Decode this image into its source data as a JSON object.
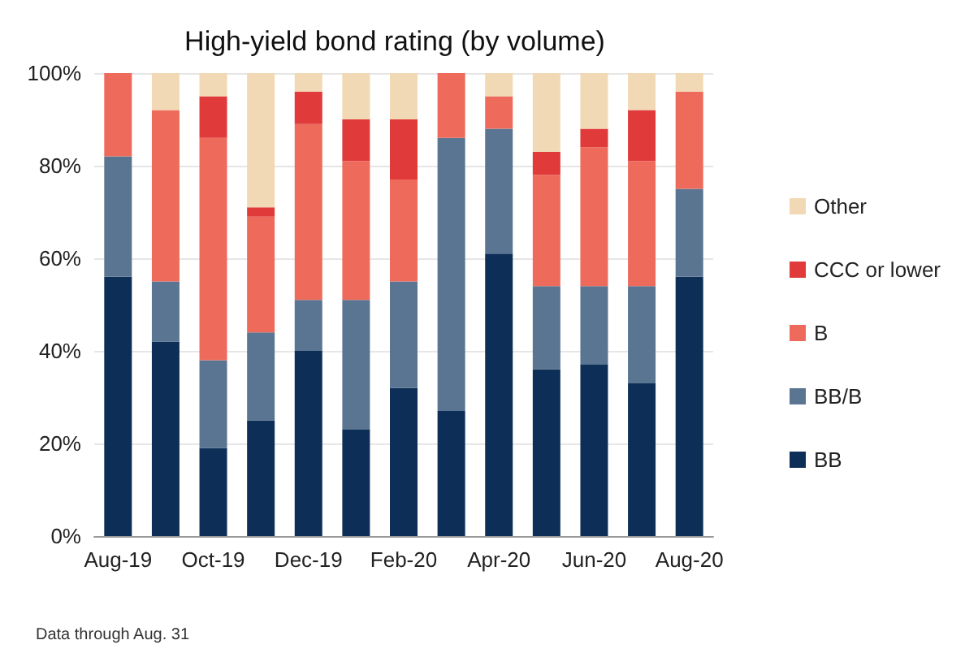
{
  "chart_data": {
    "type": "bar",
    "stacked": true,
    "title": "High-yield bond rating (by volume)",
    "categories": [
      "Aug-19",
      null,
      "Oct-19",
      null,
      "Dec-19",
      null,
      "Feb-20",
      null,
      "Apr-20",
      null,
      "Jun-20",
      null,
      "Aug-20"
    ],
    "series": [
      {
        "name": "BB",
        "color": "#0d2f57",
        "values": [
          56,
          42,
          19,
          25,
          40,
          23,
          32,
          27,
          61,
          36,
          37,
          33,
          56
        ]
      },
      {
        "name": "BB/B",
        "color": "#5a7591",
        "values": [
          26,
          13,
          19,
          19,
          11,
          28,
          23,
          59,
          27,
          18,
          17,
          21,
          19
        ]
      },
      {
        "name": "B",
        "color": "#ee6b5b",
        "values": [
          18,
          37,
          48,
          25,
          38,
          30,
          22,
          14,
          7,
          24,
          30,
          27,
          21
        ]
      },
      {
        "name": "CCC or lower",
        "color": "#e03a3a",
        "values": [
          0,
          0,
          9,
          2,
          7,
          9,
          13,
          0,
          0,
          5,
          4,
          11,
          0
        ]
      },
      {
        "name": "Other",
        "color": "#f2d9b5",
        "values": [
          0,
          8,
          5,
          29,
          4,
          10,
          10,
          0,
          5,
          17,
          12,
          8,
          4
        ]
      }
    ],
    "ylim": [
      0,
      100
    ],
    "yticks": [
      {
        "value": 0,
        "label": "0%"
      },
      {
        "value": 20,
        "label": "20%"
      },
      {
        "value": 40,
        "label": "40%"
      },
      {
        "value": 60,
        "label": "60%"
      },
      {
        "value": 80,
        "label": "80%"
      },
      {
        "value": 100,
        "label": "100%"
      }
    ],
    "grid": "y",
    "legend": "right",
    "annotations": [
      "Data through Aug. 31"
    ]
  }
}
